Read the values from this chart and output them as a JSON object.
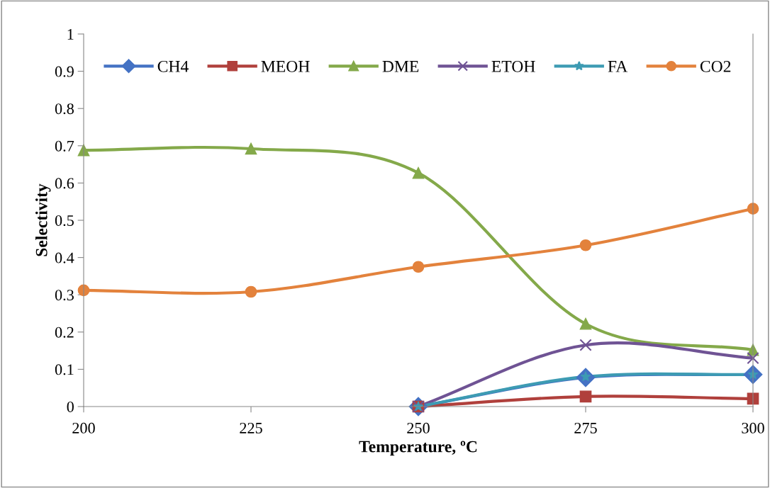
{
  "chart_data": {
    "type": "line",
    "xlabel": "Temperature, ºC",
    "ylabel": "Selectivity",
    "x": [
      200,
      225,
      250,
      275,
      300
    ],
    "xlim": [
      200,
      300
    ],
    "xticks": [
      200,
      225,
      250,
      275,
      300
    ],
    "ylim": [
      0,
      1
    ],
    "yticks": [
      0,
      0.1,
      0.2,
      0.3,
      0.4,
      0.5,
      0.6,
      0.7,
      0.8,
      0.9,
      1
    ],
    "grid": false,
    "legend": "top",
    "line_style": "solid",
    "series": [
      {
        "name": "CH4",
        "color": "#4472c4",
        "marker": "diamond",
        "values": [
          null,
          null,
          0,
          0.078,
          0.086
        ]
      },
      {
        "name": "MEOH",
        "color": "#b0403c",
        "marker": "square",
        "values": [
          null,
          null,
          0,
          0.027,
          0.021
        ]
      },
      {
        "name": "DME",
        "color": "#84a94a",
        "marker": "triangle",
        "values": [
          0.688,
          0.692,
          0.627,
          0.222,
          0.152
        ]
      },
      {
        "name": "ETOH",
        "color": "#6f5394",
        "marker": "cross",
        "values": [
          null,
          null,
          0,
          0.165,
          0.13
        ]
      },
      {
        "name": "FA",
        "color": "#3d9bb3",
        "marker": "star",
        "values": [
          null,
          null,
          0,
          0.08,
          0.086
        ]
      },
      {
        "name": "CO2",
        "color": "#e3823c",
        "marker": "circle",
        "values": [
          0.312,
          0.308,
          0.375,
          0.433,
          0.531
        ]
      }
    ]
  }
}
